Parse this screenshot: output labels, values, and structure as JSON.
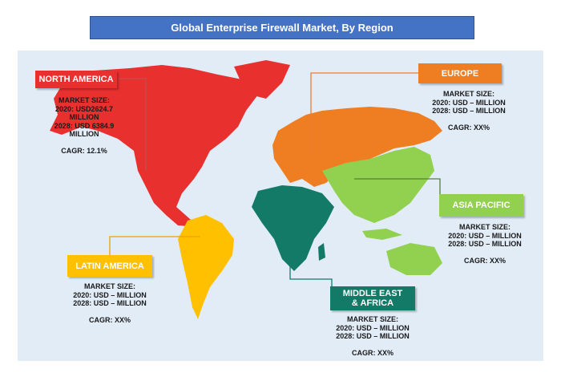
{
  "title": "Global Enterprise Firewall Market, By Region",
  "regions": {
    "north_america": {
      "name": "NORTH AMERICA",
      "color": "#e8302f",
      "market_size_label": "MARKET SIZE:",
      "line_2020": "2020: USD2624.7",
      "line_2020_b": "MILLION",
      "line_2028": "2028: USD 6384.9",
      "line_2028_b": "MILLION",
      "cagr": "CAGR: 12.1%"
    },
    "europe": {
      "name": "EUROPE",
      "color": "#ef7d22",
      "market_size_label": "MARKET SIZE:",
      "line_2020": "2020: USD – MILLION",
      "line_2028": "2028: USD – MILLION",
      "cagr": "CAGR: XX%"
    },
    "asia_pacific": {
      "name": "ASIA PACIFIC",
      "color": "#92d050",
      "market_size_label": "MARKET SIZE:",
      "line_2020": "2020: USD – MILLION",
      "line_2028": "2028: USD – MILLION",
      "cagr": "CAGR: XX%"
    },
    "latin_america": {
      "name": "LATIN AMERICA",
      "color": "#ffc000",
      "market_size_label": "MARKET SIZE:",
      "line_2020": "2020: USD – MILLION",
      "line_2028": "2028: USD – MILLION",
      "cagr": "CAGR: XX%"
    },
    "mea": {
      "name_line1": "MIDDLE EAST",
      "name_line2": "& AFRICA",
      "color": "#137a67",
      "market_size_label": "MARKET SIZE:",
      "line_2020": "2020: USD – MILLION",
      "line_2028": "2028: USD – MILLION",
      "cagr": "CAGR: XX%"
    }
  },
  "colors": {
    "background_panel": "#e1ecf7",
    "title_bar": "#4472c4",
    "connector_na": "#c0504d",
    "connector_eu": "#ed7d31",
    "connector_apac": "#548235",
    "connector_la": "#f0a000",
    "connector_mea": "#137a67"
  }
}
